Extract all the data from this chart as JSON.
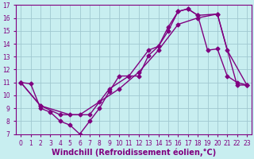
{
  "xlabel": "Windchill (Refroidissement éolien,°C)",
  "bg_color": "#c8eef0",
  "line_color": "#800080",
  "grid_color": "#a0c8d0",
  "xlim": [
    -0.5,
    23.5
  ],
  "ylim": [
    7,
    17
  ],
  "xticks": [
    0,
    1,
    2,
    3,
    4,
    5,
    6,
    7,
    8,
    9,
    10,
    11,
    12,
    13,
    14,
    15,
    16,
    17,
    18,
    19,
    20,
    21,
    22,
    23
  ],
  "yticks": [
    7,
    8,
    9,
    10,
    11,
    12,
    13,
    14,
    15,
    16,
    17
  ],
  "line1_x": [
    0,
    1,
    2,
    3,
    4,
    5,
    6,
    7,
    8,
    9,
    10,
    11,
    12,
    13,
    14,
    15,
    16,
    17,
    18,
    19,
    20,
    21,
    22,
    23
  ],
  "line1_y": [
    11.0,
    10.9,
    9.0,
    8.7,
    8.0,
    7.7,
    7.0,
    8.0,
    9.0,
    10.3,
    11.5,
    11.5,
    11.5,
    13.1,
    13.8,
    15.0,
    16.5,
    16.7,
    16.2,
    13.5,
    13.6,
    11.5,
    11.0,
    10.8
  ],
  "line2_x": [
    0,
    2,
    5,
    7,
    9,
    11,
    13,
    14,
    15,
    16,
    17,
    18,
    20,
    21,
    23
  ],
  "line2_y": [
    11.0,
    9.2,
    8.5,
    8.5,
    10.5,
    11.5,
    13.5,
    13.8,
    15.3,
    16.5,
    16.7,
    16.2,
    16.3,
    13.5,
    10.8
  ],
  "line3_x": [
    0,
    2,
    4,
    6,
    8,
    10,
    12,
    14,
    16,
    18,
    20,
    22,
    23
  ],
  "line3_y": [
    11.0,
    9.2,
    8.5,
    8.5,
    9.5,
    10.5,
    11.8,
    13.5,
    15.5,
    16.0,
    16.3,
    10.8,
    10.8
  ],
  "marker": "D",
  "markersize": 2.5,
  "linewidth": 1.0,
  "tick_fontsize": 5.5,
  "xlabel_fontsize": 7.0
}
